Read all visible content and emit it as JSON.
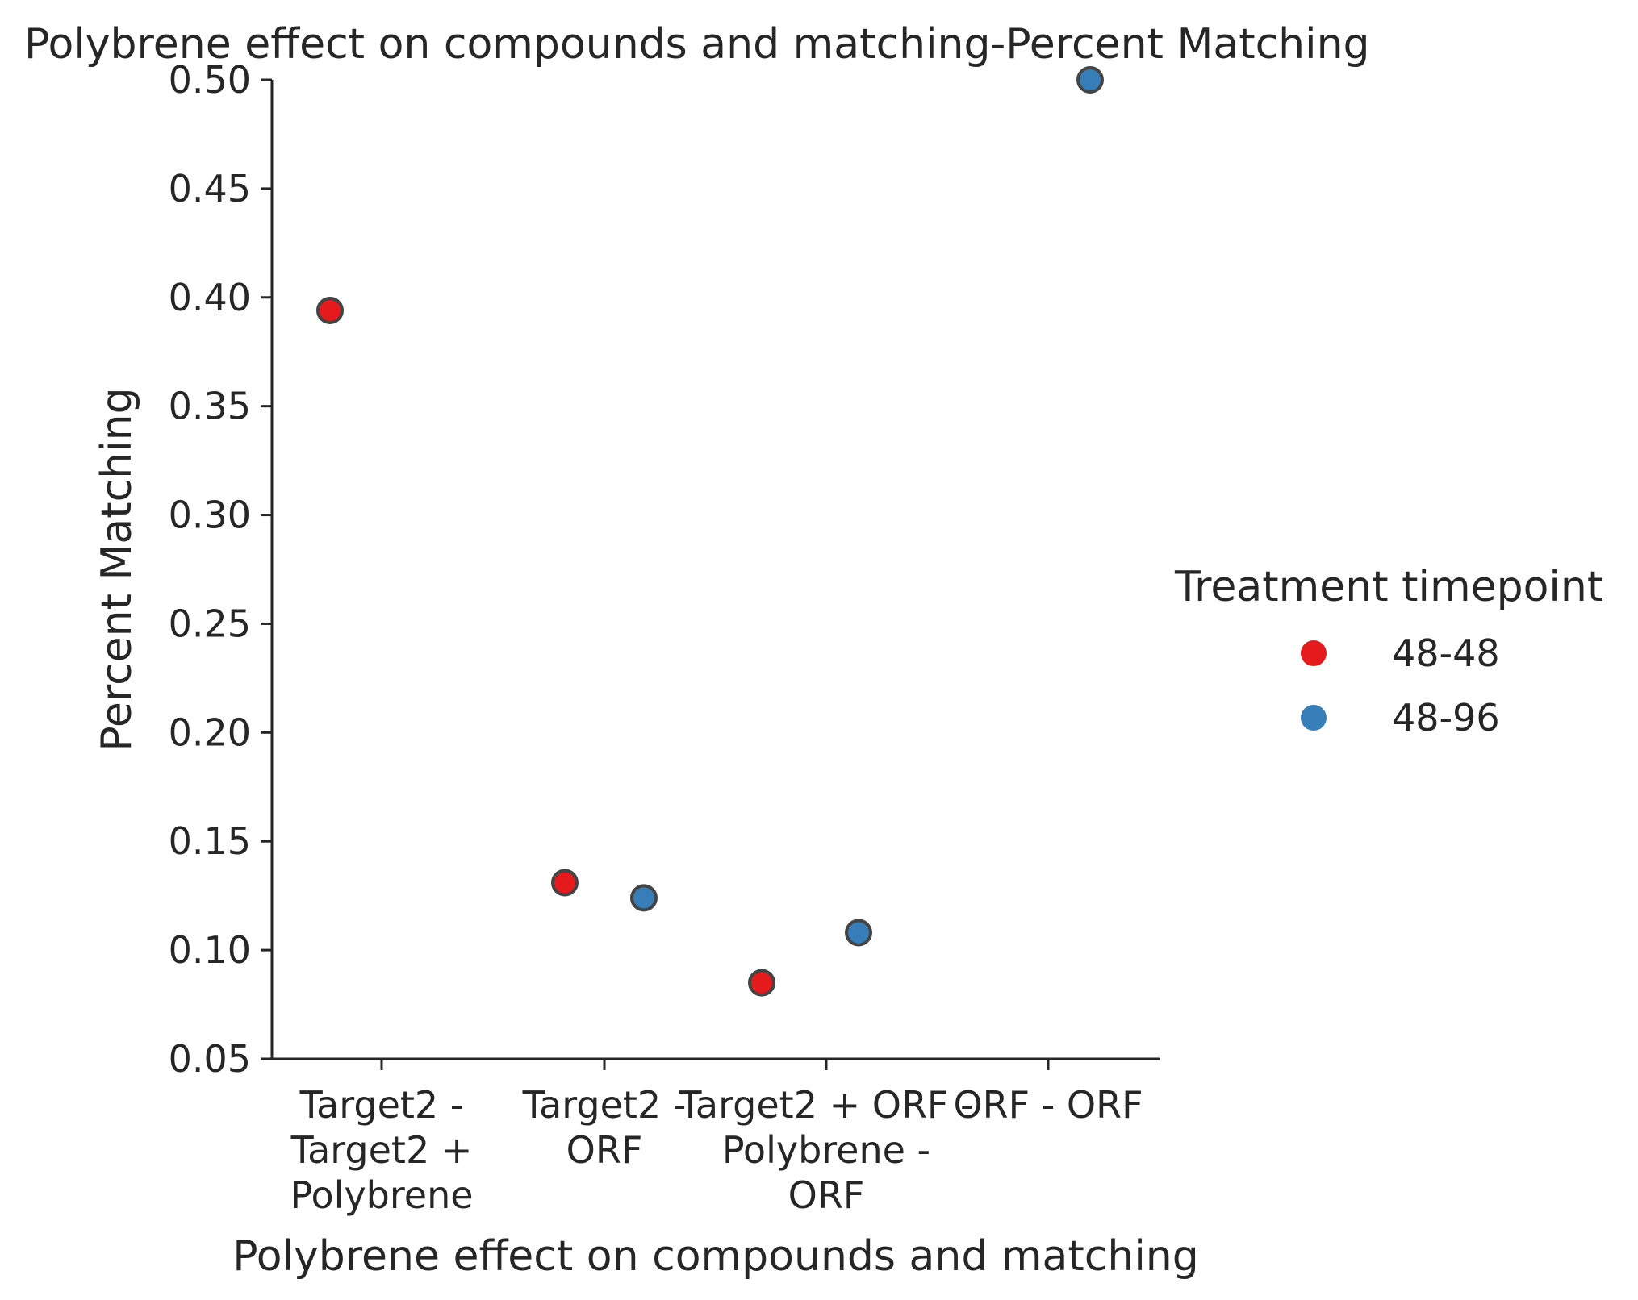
{
  "chart_data": {
    "type": "scatter",
    "title": "Polybrene effect on compounds and matching-Percent Matching",
    "xlabel": "Polybrene effect on compounds and matching",
    "ylabel": "Percent Matching",
    "ylim": [
      0.05,
      0.5
    ],
    "yticks": [
      "0.05",
      "0.10",
      "0.15",
      "0.20",
      "0.25",
      "0.30",
      "0.35",
      "0.40",
      "0.45",
      "0.50"
    ],
    "categories": [
      [
        "Target2 -",
        "Target2 +",
        "Polybrene"
      ],
      [
        "Target2 -",
        "ORF"
      ],
      [
        "Target2 + ORF -",
        "Polybrene -",
        "ORF"
      ],
      [
        "ORF - ORF"
      ]
    ],
    "legend": {
      "title": "Treatment timepoint",
      "placement": "right"
    },
    "series": [
      {
        "name": "48-48",
        "color": "#e41a1c",
        "points": [
          {
            "category_index": 0,
            "y": 0.394
          },
          {
            "category_index": 1,
            "y": 0.131
          },
          {
            "category_index": 2,
            "y": 0.085
          }
        ]
      },
      {
        "name": "48-96",
        "color": "#377eb8",
        "points": [
          {
            "category_index": 1,
            "y": 0.124
          },
          {
            "category_index": 2,
            "y": 0.108
          },
          {
            "category_index": 3,
            "y": 0.5
          }
        ]
      }
    ],
    "grid": false
  }
}
